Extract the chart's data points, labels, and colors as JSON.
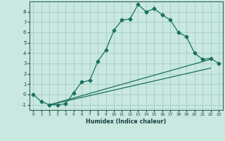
{
  "title": "",
  "xlabel": "Humidex (Indice chaleur)",
  "xlim": [
    -0.5,
    23.5
  ],
  "ylim": [
    -1.5,
    9.0
  ],
  "yticks": [
    -1,
    0,
    1,
    2,
    3,
    4,
    5,
    6,
    7,
    8
  ],
  "xticks": [
    0,
    1,
    2,
    3,
    4,
    5,
    6,
    7,
    8,
    9,
    10,
    11,
    12,
    13,
    14,
    15,
    16,
    17,
    18,
    19,
    20,
    21,
    22,
    23
  ],
  "bg_color": "#c8e8e0",
  "line_color": "#1a7060",
  "grid_color": "#a0c8bc",
  "curve1_x": [
    0,
    1,
    2,
    3,
    4,
    5,
    6,
    7,
    8,
    9,
    10,
    11,
    12,
    13,
    14,
    15,
    16,
    17,
    18,
    19,
    20,
    21,
    22,
    23
  ],
  "curve1_y": [
    0.0,
    -0.7,
    -1.0,
    -1.0,
    -0.9,
    0.15,
    1.2,
    1.35,
    3.2,
    4.3,
    6.2,
    7.2,
    7.3,
    8.7,
    8.0,
    8.3,
    7.7,
    7.2,
    6.0,
    5.6,
    4.0,
    3.4,
    3.5,
    3.0
  ],
  "curve2_x": [
    2,
    22
  ],
  "curve2_y": [
    -1.0,
    2.55
  ],
  "curve3_x": [
    2,
    22
  ],
  "curve3_y": [
    -1.0,
    3.4
  ],
  "markersize": 2.5,
  "linewidth": 0.9
}
